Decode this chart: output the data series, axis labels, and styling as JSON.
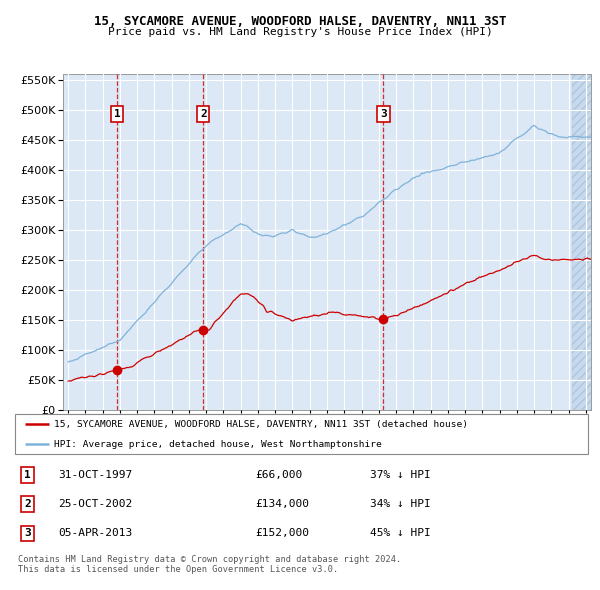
{
  "title": "15, SYCAMORE AVENUE, WOODFORD HALSE, DAVENTRY, NN11 3ST",
  "subtitle": "Price paid vs. HM Land Registry's House Price Index (HPI)",
  "legend_line1": "15, SYCAMORE AVENUE, WOODFORD HALSE, DAVENTRY, NN11 3ST (detached house)",
  "legend_line2": "HPI: Average price, detached house, West Northamptonshire",
  "footer1": "Contains HM Land Registry data © Crown copyright and database right 2024.",
  "footer2": "This data is licensed under the Open Government Licence v3.0.",
  "sale_markers": [
    {
      "num": 1,
      "year": 1997.83,
      "price": 66000,
      "label": "31-OCT-1997",
      "price_str": "£66,000",
      "pct": "37% ↓ HPI"
    },
    {
      "num": 2,
      "year": 2002.83,
      "price": 134000,
      "label": "25-OCT-2002",
      "price_str": "£134,000",
      "pct": "34% ↓ HPI"
    },
    {
      "num": 3,
      "year": 2013.27,
      "price": 152000,
      "label": "05-APR-2013",
      "price_str": "£152,000",
      "pct": "45% ↓ HPI"
    }
  ],
  "ylim": [
    0,
    560000
  ],
  "xlim_start": 1994.7,
  "xlim_end": 2025.3,
  "hatch_start": 2024.17,
  "plot_bg": "#dce8f5",
  "red_line": "#cc0000",
  "blue_line": "#7fb3d9",
  "grid_color": "#ffffff",
  "hatch_color": "#b8cfe8"
}
